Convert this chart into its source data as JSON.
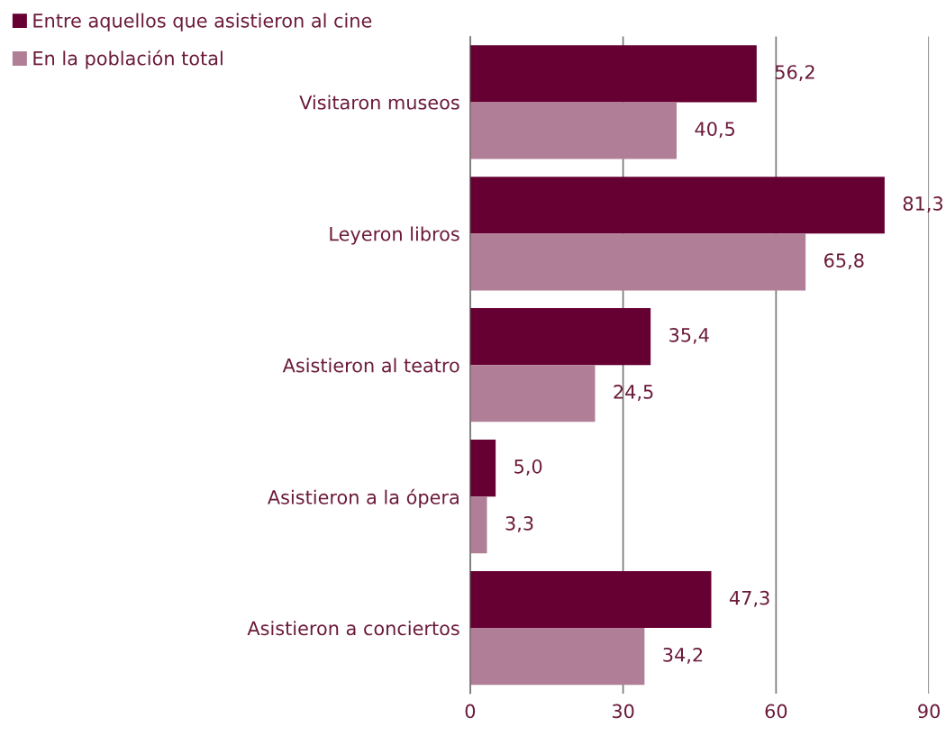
{
  "chart_data": {
    "type": "bar",
    "orientation": "horizontal",
    "categories": [
      "Visitaron museos",
      "Leyeron libros",
      "Asistieron al teatro",
      "Asistieron a la ópera",
      "Asistieron a conciertos"
    ],
    "series": [
      {
        "name": "Entre aquellos que asistieron al cine",
        "color": "#660033",
        "values": [
          56.2,
          81.3,
          35.4,
          5.0,
          47.3
        ],
        "value_labels": [
          "56,2",
          "81,3",
          "35,4",
          "5,0",
          "47,3"
        ]
      },
      {
        "name": "En la población total",
        "color": "#b07f97",
        "values": [
          40.5,
          65.8,
          24.5,
          3.3,
          34.2
        ],
        "value_labels": [
          "40,5",
          "65,8",
          "24,5",
          "3,3",
          "34,2"
        ]
      }
    ],
    "xlim": [
      0,
      90
    ],
    "xticks": [
      0,
      30,
      60,
      90
    ],
    "grid": "x",
    "legend": "top left"
  }
}
